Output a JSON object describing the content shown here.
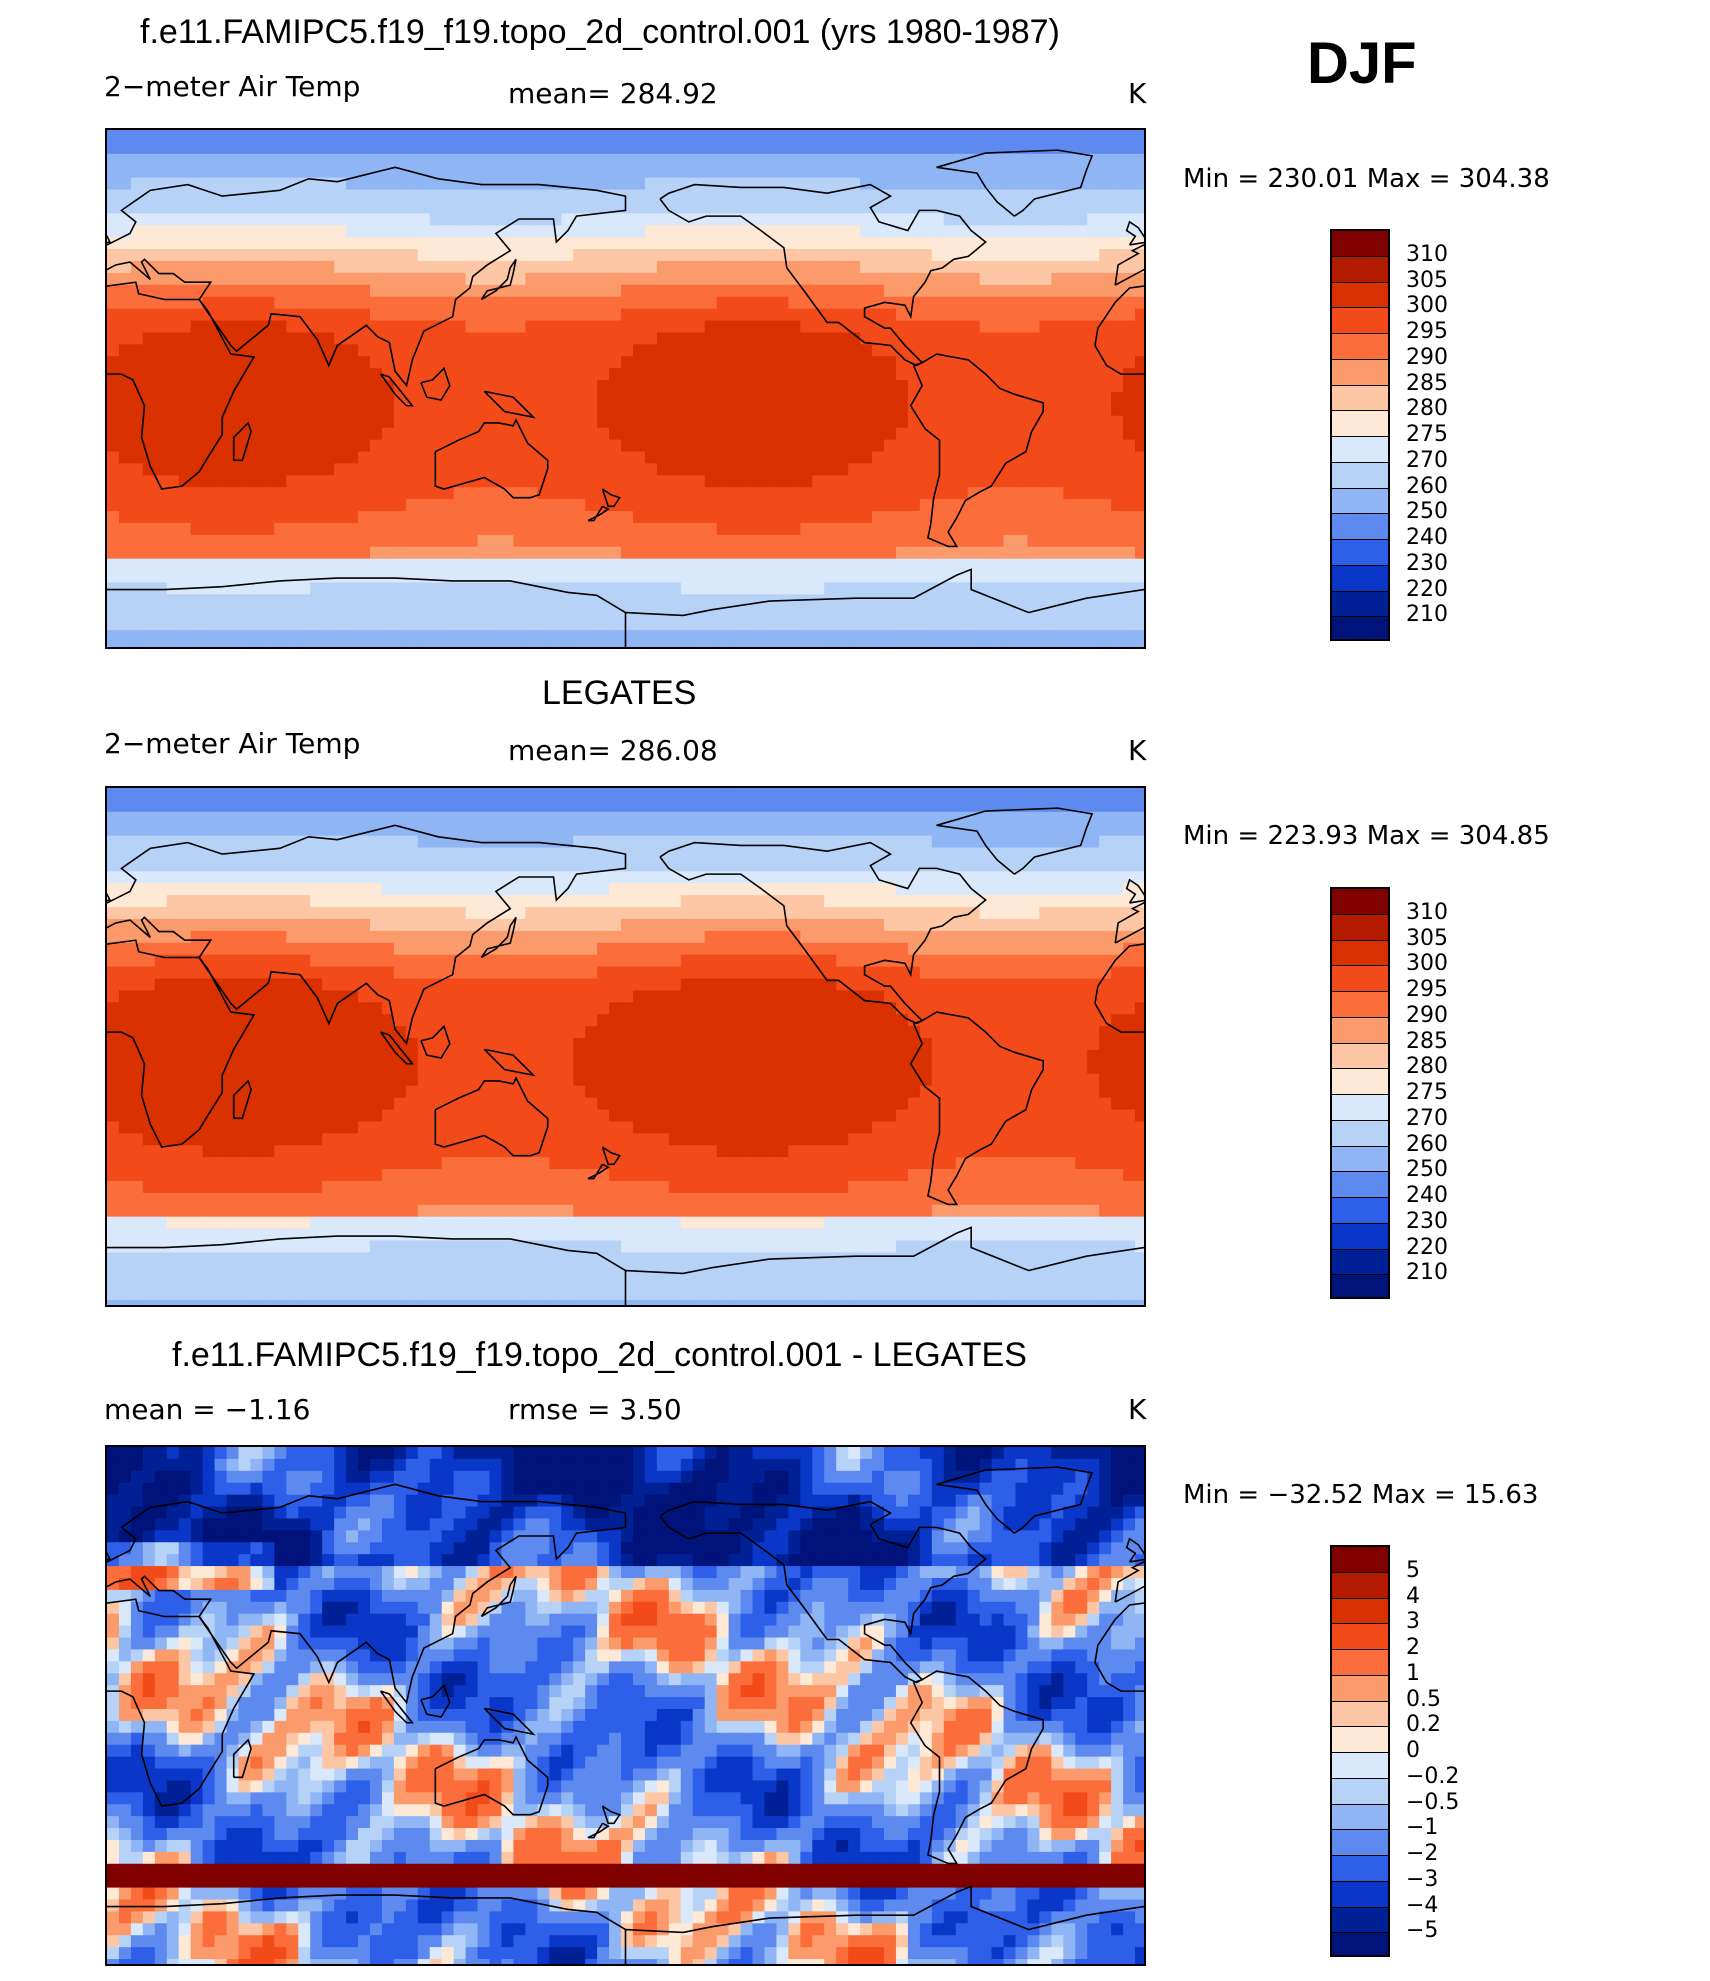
{
  "season_label": "DJF",
  "units": "K",
  "panels": [
    {
      "title": "f.e11.FAMIPC5.f19_f19.topo_2d_control.001 (yrs 1980-1987)",
      "variable": "2−meter Air Temp",
      "stat_text": "mean=  284.92",
      "units": "K",
      "minmax_text": "Min  =  230.01  Max  =  304.38",
      "field": "model"
    },
    {
      "title": "LEGATES",
      "variable": "2−meter Air Temp",
      "stat_text": "mean=  286.08",
      "units": "K",
      "minmax_text": "Min  =  223.93  Max  =  304.85",
      "field": "obs"
    },
    {
      "title": "f.e11.FAMIPC5.f19_f19.topo_2d_control.001 - LEGATES",
      "variable": "mean  =    −1.16",
      "stat_text": "rmse  =     3.50",
      "units": "K",
      "minmax_text": "Min  =  −32.52  Max  =    15.63",
      "field": "diff"
    }
  ],
  "chart_data": [
    {
      "type": "heatmap",
      "title": "f.e11.FAMIPC5.f19_f19.topo_2d_control.001 (yrs 1980-1987)",
      "variable": "2-meter Air Temp",
      "units": "K",
      "mean": 284.92,
      "min": 230.01,
      "max": 304.38,
      "season": "DJF",
      "colorbar_levels": [
        "310",
        "305",
        "300",
        "295",
        "290",
        "285",
        "280",
        "275",
        "270",
        "260",
        "250",
        "240",
        "230",
        "220",
        "210"
      ],
      "colorbar_colors": [
        "#800000",
        "#b31b00",
        "#d93100",
        "#f34a1a",
        "#fb6e3c",
        "#fb9a6a",
        "#fdc6a4",
        "#fde9d6",
        "#d9e8fa",
        "#b7d2f7",
        "#8fb5f5",
        "#5e8af0",
        "#2e5fe8",
        "#0a37c8",
        "#002095",
        "#00137a"
      ]
    },
    {
      "type": "heatmap",
      "title": "LEGATES",
      "variable": "2-meter Air Temp",
      "units": "K",
      "mean": 286.08,
      "min": 223.93,
      "max": 304.85,
      "colorbar_levels": [
        "310",
        "305",
        "300",
        "295",
        "290",
        "285",
        "280",
        "275",
        "270",
        "260",
        "250",
        "240",
        "230",
        "220",
        "210"
      ],
      "colorbar_colors": [
        "#800000",
        "#b31b00",
        "#d93100",
        "#f34a1a",
        "#fb6e3c",
        "#fb9a6a",
        "#fdc6a4",
        "#fde9d6",
        "#d9e8fa",
        "#b7d2f7",
        "#8fb5f5",
        "#5e8af0",
        "#2e5fe8",
        "#0a37c8",
        "#002095",
        "#00137a"
      ]
    },
    {
      "type": "heatmap",
      "title": "f.e11.FAMIPC5.f19_f19.topo_2d_control.001 - LEGATES",
      "units": "K",
      "mean": -1.16,
      "rmse": 3.5,
      "min": -32.52,
      "max": 15.63,
      "colorbar_levels": [
        "5",
        "4",
        "3",
        "2",
        "1",
        "0.5",
        "0.2",
        "0",
        "−0.2",
        "−0.5",
        "−1",
        "−2",
        "−3",
        "−4",
        "−5"
      ],
      "colorbar_colors": [
        "#800000",
        "#b31b00",
        "#d93100",
        "#f34a1a",
        "#fb6e3c",
        "#fb9a6a",
        "#fdc6a4",
        "#fde9d6",
        "#d9e8fa",
        "#b7d2f7",
        "#8fb5f5",
        "#5e8af0",
        "#2e5fe8",
        "#0a37c8",
        "#002095",
        "#00137a"
      ]
    }
  ]
}
